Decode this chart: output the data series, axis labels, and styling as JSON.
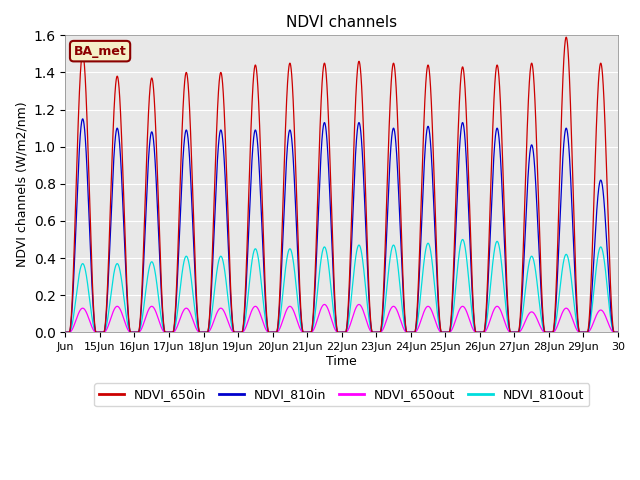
{
  "title": "NDVI channels",
  "xlabel": "Time",
  "ylabel": "NDVI channels (W/m2/nm)",
  "ylim": [
    0,
    1.6
  ],
  "background_color": "#e8e8e8",
  "annotation_label": "BA_met",
  "annotation_bg": "#f5f0c8",
  "annotation_border": "#8b0000",
  "lines": {
    "NDVI_650in": {
      "color": "#cc0000"
    },
    "NDVI_810in": {
      "color": "#0000cc"
    },
    "NDVI_650out": {
      "color": "#ff00ff"
    },
    "NDVI_810out": {
      "color": "#00dddd"
    }
  },
  "tick_labels": [
    "Jun",
    "15Jun",
    "16Jun",
    "17Jun",
    "18Jun",
    "19Jun",
    "20Jun",
    "21Jun",
    "22Jun",
    "23Jun",
    "24Jun",
    "25Jun",
    "26Jun",
    "27Jun",
    "28Jun",
    "29Jun",
    "30"
  ],
  "legend_entries": [
    {
      "label": "NDVI_650in",
      "color": "#cc0000"
    },
    {
      "label": "NDVI_810in",
      "color": "#0000cc"
    },
    {
      "label": "NDVI_650out",
      "color": "#ff00ff"
    },
    {
      "label": "NDVI_810out",
      "color": "#00dddd"
    }
  ],
  "red_peaks": [
    1.5,
    1.38,
    1.37,
    1.4,
    1.4,
    1.44,
    1.45,
    1.45,
    1.46,
    1.45,
    1.44,
    1.43,
    1.44,
    1.45,
    1.59,
    1.45,
    0.0
  ],
  "blue_peaks": [
    1.15,
    1.1,
    1.08,
    1.09,
    1.09,
    1.09,
    1.09,
    1.13,
    1.13,
    1.1,
    1.11,
    1.13,
    1.1,
    1.01,
    1.1,
    0.82,
    0.0
  ],
  "mag_peaks": [
    0.13,
    0.14,
    0.14,
    0.13,
    0.13,
    0.14,
    0.14,
    0.15,
    0.15,
    0.14,
    0.14,
    0.14,
    0.14,
    0.11,
    0.13,
    0.12,
    0.0
  ],
  "cyan_peaks": [
    0.37,
    0.37,
    0.38,
    0.41,
    0.41,
    0.45,
    0.45,
    0.46,
    0.47,
    0.47,
    0.48,
    0.5,
    0.49,
    0.41,
    0.42,
    0.46,
    0.0
  ]
}
